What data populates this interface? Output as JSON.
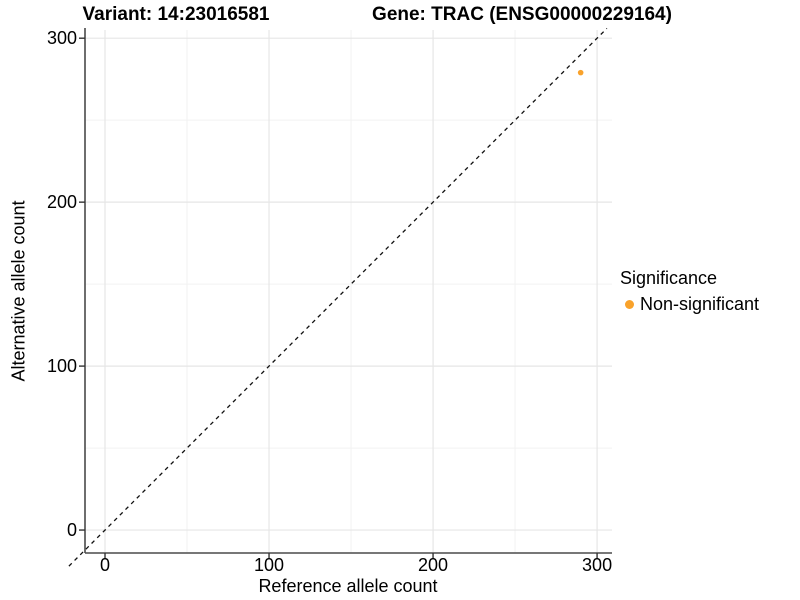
{
  "chart_data": {
    "type": "scatter",
    "titles": {
      "left": "Variant: 14:23016581",
      "right": "Gene: TRAC (ENSG00000229164)"
    },
    "xlabel": "Reference allele count",
    "ylabel": "Alternative allele count",
    "xlim": [
      -12.2,
      309.1
    ],
    "ylim": [
      -14.0,
      305.0
    ],
    "x_ticks": [
      0,
      100,
      200,
      300
    ],
    "y_ticks": [
      0,
      100,
      200,
      300
    ],
    "x_minor_ticks": [
      50,
      150,
      250
    ],
    "y_minor_ticks": [
      50,
      150,
      250
    ],
    "grid": true,
    "background": "#ffffff",
    "identity_line": {
      "slope": 1,
      "intercept": 0,
      "style": "dashed",
      "color": "#111111",
      "span": [
        -22,
        306
      ]
    },
    "points": [
      {
        "x": 290,
        "y": 279,
        "r": 2.8,
        "color": "#F9A22B",
        "significance": "Non-significant"
      }
    ],
    "legend": {
      "title": "Significance",
      "position": "right",
      "items": [
        {
          "label": "Non-significant",
          "color": "#F9A22B"
        }
      ]
    }
  }
}
